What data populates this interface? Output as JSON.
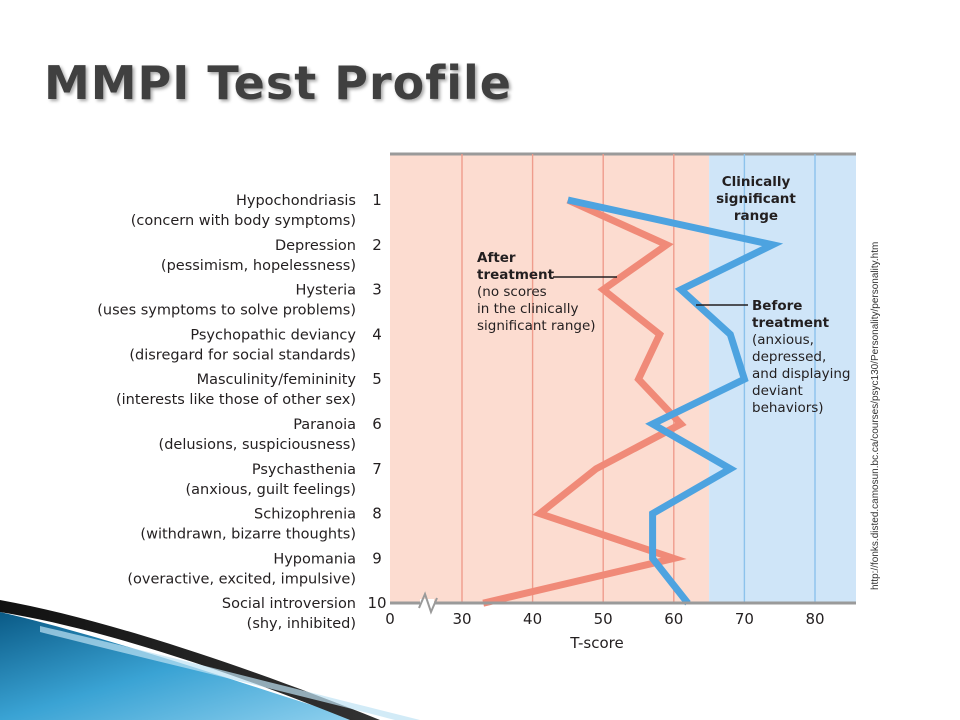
{
  "slide": {
    "title": "MMPI Test Profile",
    "source_text": "http://fonks.disted.camosun.bc.ca/courses/psyc130/Personality/personality.htm"
  },
  "chart_data": {
    "type": "line",
    "orientation": "horizontal",
    "xlabel": "T-score",
    "x_ticks": [
      "0",
      "30",
      "40",
      "50",
      "60",
      "70",
      "80"
    ],
    "xlim": [
      20,
      86
    ],
    "axis_break_after": 0,
    "clinical_threshold": 65,
    "scales": [
      {
        "num": "1",
        "name": "Hypochondriasis",
        "desc": "(concern with body symptoms)"
      },
      {
        "num": "2",
        "name": "Depression",
        "desc": "(pessimism, hopelessness)"
      },
      {
        "num": "3",
        "name": "Hysteria",
        "desc": "(uses symptoms to solve problems)"
      },
      {
        "num": "4",
        "name": "Psychopathic deviancy",
        "desc": "(disregard for social standards)"
      },
      {
        "num": "5",
        "name": "Masculinity/femininity",
        "desc": "(interests like those of other sex)"
      },
      {
        "num": "6",
        "name": "Paranoia",
        "desc": "(delusions, suspiciousness)"
      },
      {
        "num": "7",
        "name": "Psychasthenia",
        "desc": "(anxious, guilt feelings)"
      },
      {
        "num": "8",
        "name": "Schizophrenia",
        "desc": "(withdrawn, bizarre thoughts)"
      },
      {
        "num": "9",
        "name": "Hypomania",
        "desc": "(overactive, excited, impulsive)"
      },
      {
        "num": "10",
        "name": "Social introversion",
        "desc": "(shy, inhibited)"
      }
    ],
    "series": [
      {
        "key": "after",
        "color": "#f08a78",
        "values": [
          45,
          59,
          50,
          58,
          55,
          61,
          49,
          41,
          60,
          33
        ],
        "label_lines": [
          {
            "text": "After",
            "bold": true
          },
          {
            "text": "treatment",
            "bold": true
          },
          {
            "text": "(no scores",
            "bold": false
          },
          {
            "text": "in the clinically",
            "bold": false
          },
          {
            "text": "significant range)",
            "bold": false
          }
        ]
      },
      {
        "key": "before",
        "color": "#4da3e0",
        "values": [
          45,
          74,
          61,
          68,
          70,
          57,
          68,
          57,
          57,
          62
        ],
        "label_lines": [
          {
            "text": "Before",
            "bold": true
          },
          {
            "text": "treatment",
            "bold": true
          },
          {
            "text": "(anxious,",
            "bold": false
          },
          {
            "text": "depressed,",
            "bold": false
          },
          {
            "text": "and displaying",
            "bold": false
          },
          {
            "text": "deviant",
            "bold": false
          },
          {
            "text": "behaviors)",
            "bold": false
          }
        ]
      }
    ],
    "clinical_label_lines": [
      "Clinically",
      "significant",
      "range"
    ],
    "colors": {
      "normal_region": "#fcdcd0",
      "clinical_region": "#cfe5f8",
      "gridline": "#ef9c8c"
    }
  }
}
